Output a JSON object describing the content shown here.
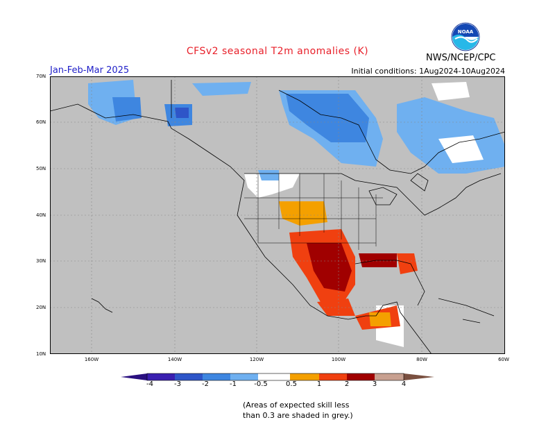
{
  "header": {
    "title": "CFSv2 seasonal T2m anomalies (K)",
    "season": "Jan-Feb-Mar 2025",
    "initial_conditions": "Initial conditions: 1Aug2024-10Aug2024",
    "agency": "NWS/NCEP/CPC",
    "logo_text": "NOAA"
  },
  "axes": {
    "lat_ticks": [
      "70N",
      "60N",
      "50N",
      "40N",
      "30N",
      "20N",
      "10N"
    ],
    "lon_ticks": [
      "160W",
      "140W",
      "120W",
      "100W",
      "80W",
      "60W"
    ]
  },
  "legend": {
    "labels": [
      "-4",
      "-3",
      "-2",
      "-1",
      "-0.5",
      "0.5",
      "1",
      "2",
      "3",
      "4"
    ],
    "colors": [
      "#3a1fb0",
      "#2e55c8",
      "#3e86e0",
      "#6fb0f0",
      "#ffffff",
      "#f4a000",
      "#f04010",
      "#a00000",
      "#c8a090"
    ]
  },
  "note": {
    "line1": "(Areas of expected skill less",
    "line2": "than 0.3 are shaded in grey.)"
  },
  "colors": {
    "skill_grey": "#c0c0c0",
    "ocean_lines": "#000000"
  }
}
